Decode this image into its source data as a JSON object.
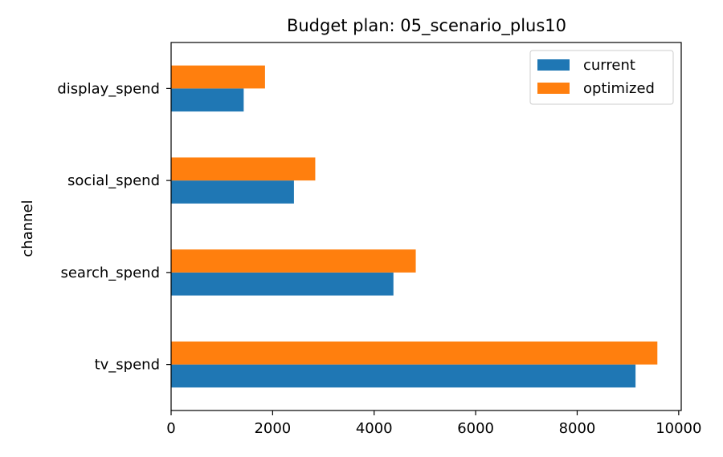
{
  "chart_data": {
    "type": "bar",
    "orientation": "horizontal",
    "title": "Budget plan: 05_scenario_plus10",
    "xlabel": "",
    "ylabel": "channel",
    "categories": [
      "tv_spend",
      "search_spend",
      "social_spend",
      "display_spend"
    ],
    "series": [
      {
        "name": "current",
        "values": [
          9150,
          4380,
          2420,
          1430
        ],
        "color": "#1f77b4"
      },
      {
        "name": "optimized",
        "values": [
          9580,
          4820,
          2840,
          1850
        ],
        "color": "#ff7f0e"
      }
    ],
    "xlim": [
      0,
      10050
    ],
    "xticks": [
      0,
      2000,
      4000,
      6000,
      8000,
      10000
    ],
    "xtick_labels": [
      "0",
      "2000",
      "4000",
      "6000",
      "8000",
      "10000"
    ],
    "legend": {
      "placement": "top-right",
      "entries": [
        "current",
        "optimized"
      ]
    },
    "grid": false
  }
}
